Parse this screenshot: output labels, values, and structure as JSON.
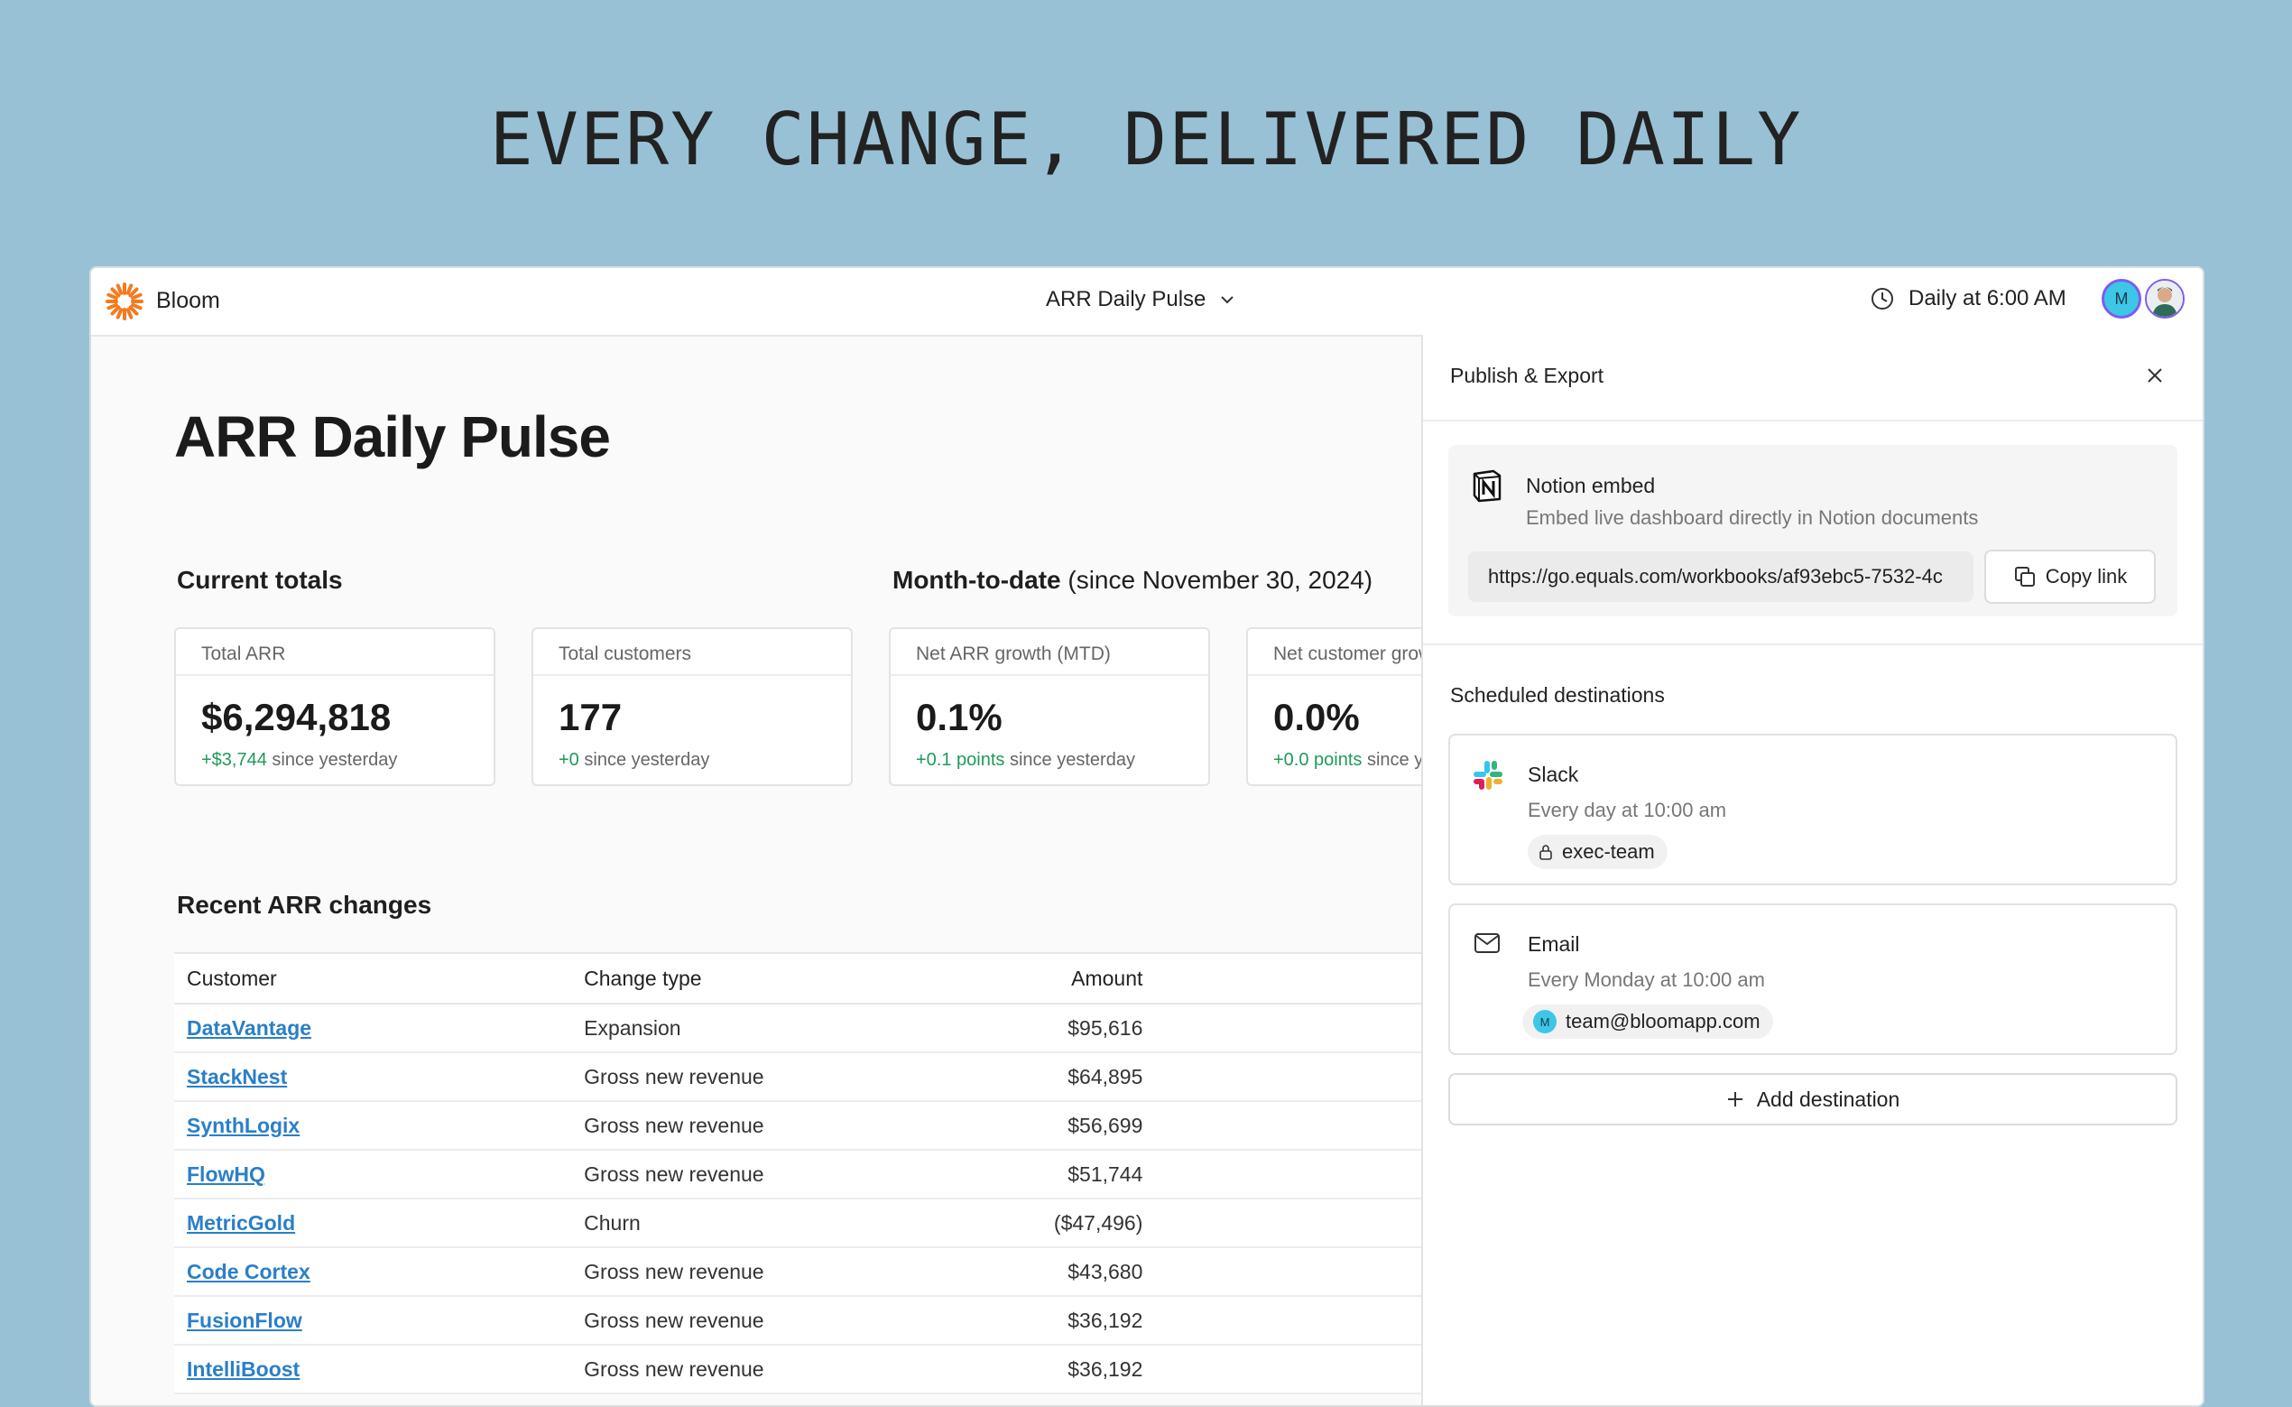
{
  "headline": "EVERY CHANGE, DELIVERED DAILY",
  "topbar": {
    "brand": "Bloom",
    "workbook_title": "ARR Daily Pulse",
    "schedule": "Daily at 6:00 AM",
    "avatar_initial": "M"
  },
  "main": {
    "title": "ARR Daily Pulse",
    "current_totals_label": "Current totals",
    "mtd_label": "Month-to-date",
    "mtd_since": "(since November 30, 2024)",
    "cards": [
      {
        "label": "Total ARR",
        "value": "$6,294,818",
        "delta": "+$3,744",
        "delta_suffix": "since yesterday"
      },
      {
        "label": "Total customers",
        "value": "177",
        "delta": "+0",
        "delta_suffix": "since yesterday"
      },
      {
        "label": "Net ARR growth (MTD)",
        "value": "0.1%",
        "delta": "+0.1 points",
        "delta_suffix": "since yesterday"
      },
      {
        "label": "Net customer growth (MTD)",
        "value": "0.0%",
        "delta": "+0.0 points",
        "delta_suffix": "since yesterday"
      }
    ],
    "recent_label": "Recent ARR changes",
    "table": {
      "headers": [
        "Customer",
        "Change type",
        "Amount"
      ],
      "rows": [
        {
          "customer": "DataVantage",
          "type": "Expansion",
          "amount": "$95,616",
          "negative": false
        },
        {
          "customer": "StackNest",
          "type": "Gross new revenue",
          "amount": "$64,895",
          "negative": false
        },
        {
          "customer": "SynthLogix",
          "type": "Gross new revenue",
          "amount": "$56,699",
          "negative": false
        },
        {
          "customer": "FlowHQ",
          "type": "Gross new revenue",
          "amount": "$51,744",
          "negative": false
        },
        {
          "customer": "MetricGold",
          "type": "Churn",
          "amount": "($47,496)",
          "negative": true
        },
        {
          "customer": "Code Cortex",
          "type": "Gross new revenue",
          "amount": "$43,680",
          "negative": false
        },
        {
          "customer": "FusionFlow",
          "type": "Gross new revenue",
          "amount": "$36,192",
          "negative": false
        },
        {
          "customer": "IntelliBoost",
          "type": "Gross new revenue",
          "amount": "$36,192",
          "negative": false
        }
      ]
    }
  },
  "panel": {
    "title": "Publish & Export",
    "notion": {
      "title": "Notion embed",
      "subtitle": "Embed live dashboard directly in Notion documents",
      "url": "https://go.equals.com/workbooks/af93ebc5-7532-4c",
      "copy_label": "Copy link"
    },
    "scheduled_label": "Scheduled destinations",
    "destinations": [
      {
        "name": "Slack",
        "schedule": "Every day at 10:00 am",
        "target": "exec-team"
      },
      {
        "name": "Email",
        "schedule": "Every Monday at 10:00 am",
        "target": "team@bloomapp.com"
      }
    ],
    "add_label": "Add destination"
  },
  "colors": {
    "background": "#99c1d6",
    "positive": "#1f9a5a",
    "negative": "#d8232a",
    "link": "#2a7fc8",
    "brand_orange": "#f47a20"
  }
}
